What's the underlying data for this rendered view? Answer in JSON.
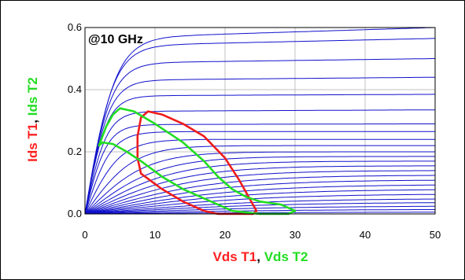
{
  "chart_data": {
    "type": "line",
    "annotation": "@10 GHz",
    "xlabel": {
      "parts": [
        {
          "text": "Vds T1",
          "color": "#ff2020"
        },
        {
          "text": ", ",
          "color": "#000000"
        },
        {
          "text": "Vds T2",
          "color": "#22dd22"
        }
      ]
    },
    "ylabel": {
      "parts": [
        {
          "text": "Ids T1",
          "color": "#ff2020"
        },
        {
          "text": ", ",
          "color": "#000000"
        },
        {
          "text": "Ids T2",
          "color": "#22dd22"
        }
      ]
    },
    "xlim": [
      0,
      50
    ],
    "ylim": [
      0,
      0.6
    ],
    "x_ticks": [
      0,
      10,
      20,
      30,
      40,
      50
    ],
    "y_ticks": [
      0.0,
      0.2,
      0.4,
      0.6
    ],
    "x_tick_labels": [
      "0",
      "10",
      "20",
      "30",
      "40",
      "50"
    ],
    "y_tick_labels": [
      "0.0",
      "0.2",
      "0.4",
      "0.6"
    ],
    "grid": true,
    "colors": {
      "iv_curves": "#1010cc",
      "load_line_t1": "#ee1c1c",
      "load_line_t2": "#22dd22",
      "grid": "#c0c0c0"
    },
    "iv_curve_family": {
      "description_source": "drain current vs drain voltage family",
      "i_end_at_50V": [
        0.6,
        0.565,
        0.5,
        0.44,
        0.385,
        0.335,
        0.29,
        0.265,
        0.24,
        0.22,
        0.2,
        0.185,
        0.17,
        0.155,
        0.14,
        0.125,
        0.11,
        0.095,
        0.08,
        0.065,
        0.05,
        0.038,
        0.026,
        0.015,
        0.006
      ],
      "knee_voltage": [
        7,
        6.5,
        6,
        5.5,
        5,
        5,
        5,
        6,
        8,
        11,
        14,
        17,
        20,
        23,
        26,
        29,
        32,
        35,
        37,
        39,
        41,
        43,
        45,
        47,
        49
      ],
      "slope_per_volt": [
        0.0007,
        0.0005,
        0.0003,
        0.0002,
        0.0001,
        0.0001,
        5e-05,
        0.0,
        0.0,
        0.0,
        0.0,
        0.0,
        0.0,
        0.0,
        0.0,
        0.0,
        0.0,
        0.0,
        0.0,
        0.0,
        0.0,
        0.0,
        0.0,
        0.0,
        0.0
      ]
    },
    "series": [
      {
        "points": [
          [
            19,
            0.0
          ],
          [
            17,
            0.01
          ],
          [
            14,
            0.04
          ],
          [
            11,
            0.08
          ],
          [
            8,
            0.13
          ],
          [
            7.5,
            0.18
          ],
          [
            7.5,
            0.25
          ],
          [
            8,
            0.31
          ],
          [
            9,
            0.33
          ],
          [
            11,
            0.32
          ],
          [
            14,
            0.29
          ],
          [
            17,
            0.25
          ],
          [
            20,
            0.18
          ],
          [
            22,
            0.11
          ],
          [
            23.5,
            0.05
          ],
          [
            24.5,
            0.01
          ],
          [
            24,
            0.0
          ],
          [
            21,
            0.0
          ],
          [
            19,
            0.0
          ]
        ]
      },
      {
        "points": [
          [
            5,
            0.34
          ],
          [
            7,
            0.33
          ],
          [
            10,
            0.29
          ],
          [
            14,
            0.23
          ],
          [
            17,
            0.17
          ],
          [
            19,
            0.12
          ],
          [
            21,
            0.08
          ],
          [
            23,
            0.055
          ],
          [
            25,
            0.04
          ],
          [
            28,
            0.03
          ],
          [
            30,
            0.01
          ],
          [
            29,
            0.0
          ],
          [
            25,
            0.0
          ],
          [
            21,
            0.01
          ],
          [
            19,
            0.03
          ],
          [
            17,
            0.05
          ],
          [
            14,
            0.08
          ],
          [
            11,
            0.12
          ],
          [
            8,
            0.17
          ],
          [
            6,
            0.2
          ],
          [
            4,
            0.225
          ],
          [
            2.5,
            0.23
          ],
          [
            2,
            0.22
          ],
          [
            3,
            0.28
          ],
          [
            4,
            0.32
          ],
          [
            5,
            0.34
          ]
        ]
      }
    ]
  }
}
